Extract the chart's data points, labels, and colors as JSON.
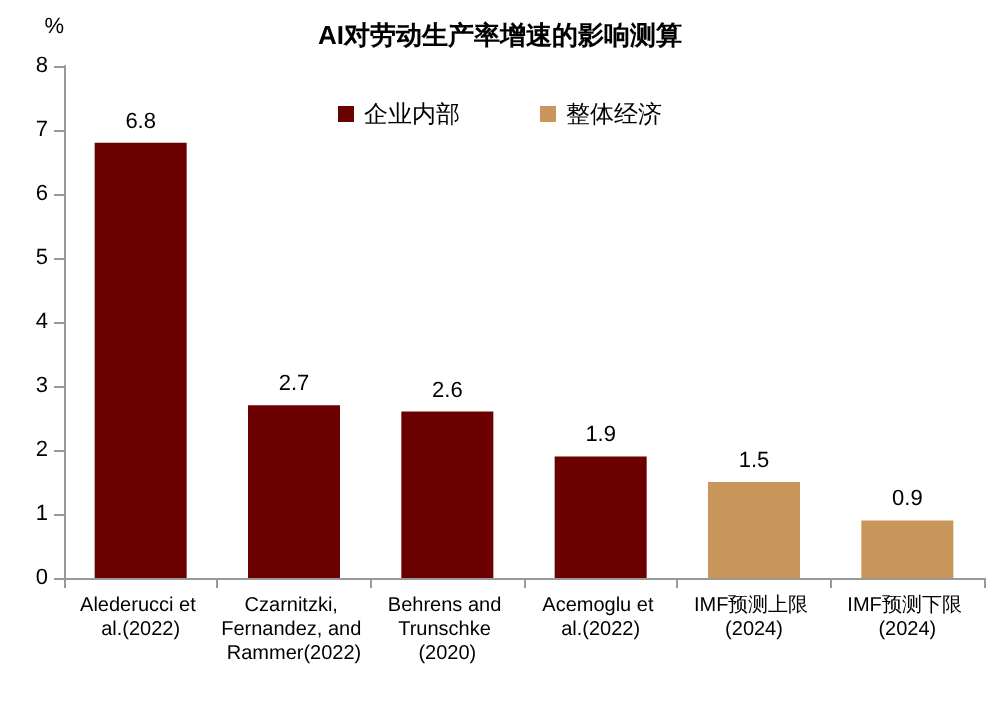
{
  "chart_data": {
    "type": "bar",
    "title": "AI对劳动生产率增速的影响测算",
    "ylabel": "%",
    "categories": [
      "Alederucci et al.(2022)",
      "Czarnitzki, Fernandez, and Rammer(2022)",
      "Behrens and Trunschke (2020)",
      "Acemoglu et al.(2022)",
      "IMF预测上限 (2024)",
      "IMF预测下限 (2024)"
    ],
    "series": [
      {
        "name": "企业内部",
        "color": "#6b0000",
        "values": [
          6.8,
          2.7,
          2.6,
          1.9,
          null,
          null
        ]
      },
      {
        "name": "整体经济",
        "color": "#c8965a",
        "values": [
          null,
          null,
          null,
          null,
          1.5,
          0.9
        ]
      }
    ],
    "stacked": true,
    "ylim": [
      0,
      8
    ],
    "yticks": [
      0,
      1,
      2,
      3,
      4,
      5,
      6,
      7,
      8
    ],
    "grid": false,
    "legend": "top",
    "data_labels": true
  }
}
